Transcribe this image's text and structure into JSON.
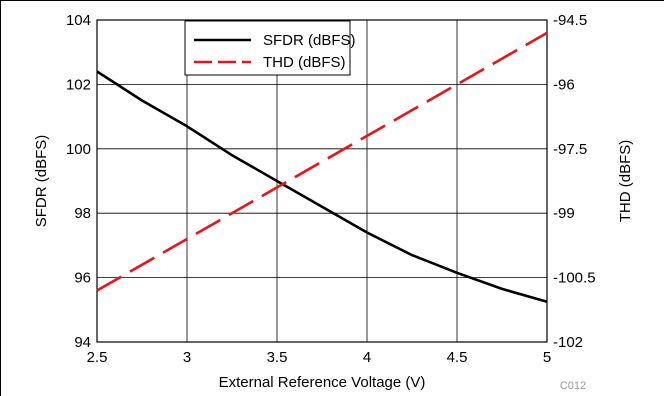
{
  "chart_data": {
    "type": "line",
    "title": "",
    "xlabel": "External Reference Voltage (V)",
    "ylabel_left": "SFDR (dBFS)",
    "ylabel_right": "THD (dBFS)",
    "xlim": [
      2.5,
      5
    ],
    "ylim_left": [
      94,
      104
    ],
    "ylim_right": [
      -102,
      -94.5
    ],
    "x_ticks": [
      "2.5",
      "3",
      "3.5",
      "4",
      "4.5",
      "5"
    ],
    "y_left_ticks": [
      "94",
      "96",
      "98",
      "100",
      "102",
      "104"
    ],
    "y_right_ticks": [
      "-102",
      "-100.5",
      "-99",
      "-97.5",
      "-96",
      "-94.5"
    ],
    "grid": true,
    "legend_position": "top-center",
    "code_label": "C012",
    "series": [
      {
        "name": "SFDR (dBFS)",
        "axis": "left",
        "color": "#000000",
        "dash": "solid",
        "x": [
          2.5,
          2.75,
          3.0,
          3.25,
          3.5,
          3.75,
          4.0,
          4.25,
          4.5,
          4.75,
          5.0
        ],
        "y": [
          102.4,
          101.5,
          100.7,
          99.8,
          99.0,
          98.2,
          97.4,
          96.7,
          96.15,
          95.65,
          95.25
        ]
      },
      {
        "name": "THD (dBFS)",
        "axis": "right",
        "color": "#e8141a",
        "dash": "dashed",
        "x": [
          2.5,
          3.0,
          3.5,
          4.0,
          4.5,
          5.0
        ],
        "y": [
          -100.8,
          -99.6,
          -98.4,
          -97.2,
          -96.0,
          -94.8
        ]
      }
    ]
  }
}
